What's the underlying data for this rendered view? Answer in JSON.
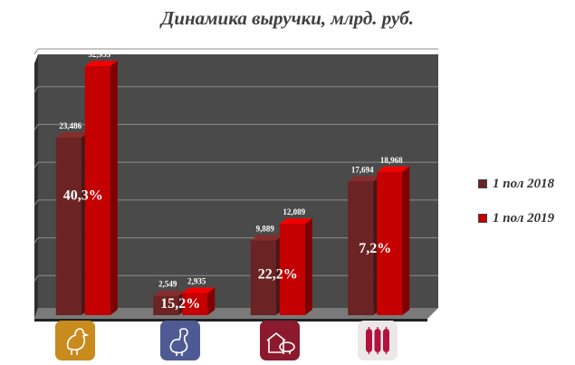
{
  "colors": {
    "plot_background": "#4a4a4a",
    "gridline": "#8c8c8c",
    "series_2018": "#6b2323",
    "series_2019": "#c40000",
    "percent_text": "#ffffff",
    "value_text": "#ffffff",
    "title_text": "#404040"
  },
  "chart_data": {
    "type": "bar",
    "title": "Динамика выручки, млрд. руб.",
    "xlabel": "",
    "ylabel": "",
    "ylim": [
      0,
      35
    ],
    "grid": true,
    "legend_position": "right",
    "categories": [
      "poultry",
      "turkey",
      "pork",
      "sausages"
    ],
    "series": [
      {
        "name": "1 пол 2018",
        "values": [
          23.486,
          2.549,
          9.889,
          17.694
        ],
        "labels": [
          "23,486",
          "2,549",
          "9,889",
          "17,694"
        ],
        "color": "#6b2323"
      },
      {
        "name": "1 пол 2019",
        "values": [
          32.953,
          2.935,
          12.089,
          18.968
        ],
        "labels": [
          "32,953",
          "2,935",
          "12,089",
          "18,968"
        ],
        "color": "#c40000"
      }
    ],
    "growth_labels": [
      "40,3%",
      "15,2%",
      "22,2%",
      "7,2%"
    ]
  },
  "category_icons": [
    {
      "name": "chicken-icon",
      "color": "#c98a1e"
    },
    {
      "name": "turkey-icon",
      "color": "#4f5a94"
    },
    {
      "name": "pig-farm-icon",
      "color": "#8c1a2e"
    },
    {
      "name": "sausage-icon",
      "color": "#ece8e8"
    }
  ]
}
